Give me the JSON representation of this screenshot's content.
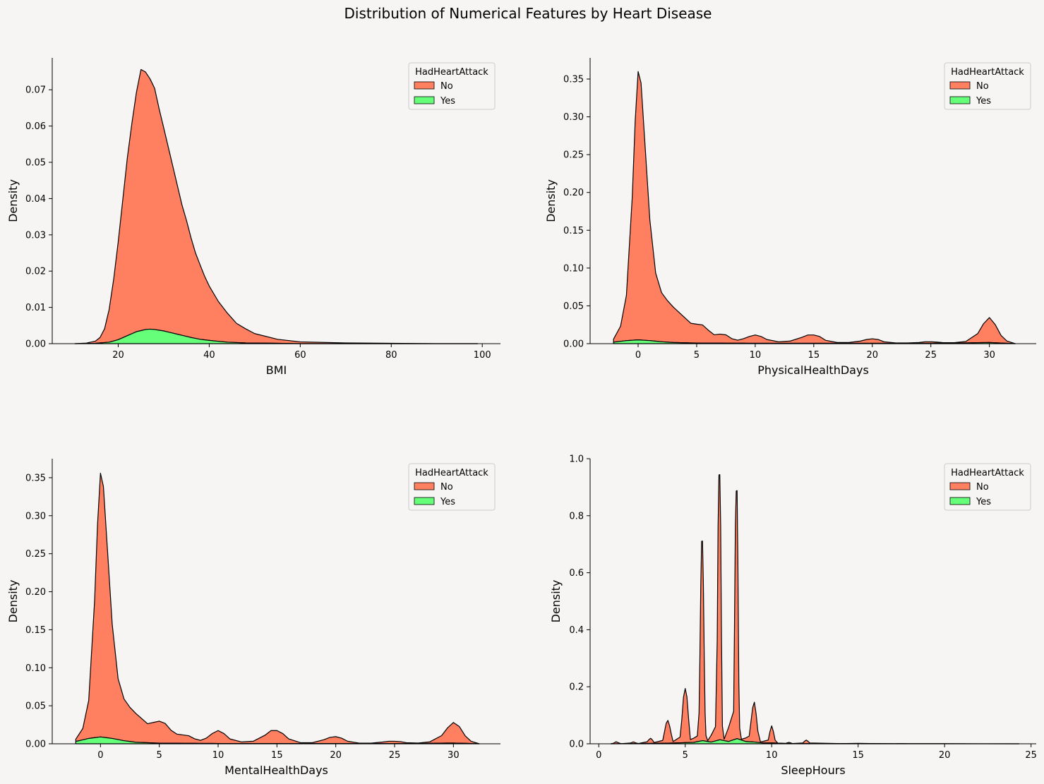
{
  "figure": {
    "title": "Distribution of Numerical Features by Heart Disease",
    "colors": {
      "background": "#f6f5f4",
      "No": "#ff7f61",
      "Yes": "#66ff7a",
      "outline": "#000000"
    }
  },
  "legend": {
    "title": "HadHeartAttack",
    "entries": [
      {
        "label": "No",
        "color": "#ff7f61"
      },
      {
        "label": "Yes",
        "color": "#66ff7a"
      }
    ]
  },
  "chart_data": [
    {
      "type": "area",
      "stacked": true,
      "xlabel": "BMI",
      "ylabel": "Density",
      "xlim": [
        5.5,
        104
      ],
      "ylim": [
        0,
        0.0788
      ],
      "xticks": [
        20,
        40,
        60,
        80,
        100
      ],
      "xtick_labels": [
        "20",
        "40",
        "60",
        "80",
        "100"
      ],
      "yticks": [
        0,
        0.01,
        0.02,
        0.03,
        0.04,
        0.05,
        0.06,
        0.07
      ],
      "ytick_labels": [
        "0.00",
        "0.01",
        "0.02",
        "0.03",
        "0.04",
        "0.05",
        "0.06",
        "0.07"
      ],
      "legend_position": "top-right",
      "series": [
        {
          "name": "No",
          "x": [
            10.5,
            13,
            15,
            16,
            17,
            18,
            19,
            20,
            21,
            22,
            23,
            24,
            25,
            25.5,
            26,
            27,
            28,
            29,
            30,
            31,
            32,
            33,
            34,
            35,
            36,
            37,
            38,
            39,
            40,
            42,
            44,
            46,
            48,
            50,
            55,
            60,
            70,
            80,
            90,
            99
          ],
          "values": [
            0,
            0.0001,
            0.0006,
            0.0015,
            0.0038,
            0.009,
            0.017,
            0.027,
            0.038,
            0.049,
            0.058,
            0.066,
            0.072,
            0.0715,
            0.071,
            0.069,
            0.0665,
            0.061,
            0.056,
            0.051,
            0.046,
            0.041,
            0.036,
            0.032,
            0.0275,
            0.0235,
            0.0205,
            0.0175,
            0.015,
            0.011,
            0.008,
            0.0053,
            0.0039,
            0.0026,
            0.0011,
            0.0005,
            0.0002,
            0.0001,
            0,
            0
          ]
        },
        {
          "name": "Yes",
          "x": [
            10.5,
            15,
            18,
            20,
            22,
            24,
            26,
            27,
            28,
            30,
            32,
            34,
            36,
            38,
            40,
            44,
            48,
            55,
            60,
            99
          ],
          "values": [
            0,
            0.0001,
            0.0004,
            0.0011,
            0.0022,
            0.0033,
            0.0039,
            0.004,
            0.0039,
            0.0035,
            0.0029,
            0.0023,
            0.0017,
            0.0012,
            0.0009,
            0.0004,
            0.0002,
            0.0001,
            0,
            0
          ]
        }
      ]
    },
    {
      "type": "area",
      "stacked": true,
      "xlabel": "PhysicalHealthDays",
      "ylabel": "Density",
      "xlim": [
        -4.1,
        34
      ],
      "ylim": [
        0,
        0.378
      ],
      "xticks": [
        0,
        5,
        10,
        15,
        20,
        25,
        30
      ],
      "xtick_labels": [
        "0",
        "5",
        "10",
        "15",
        "20",
        "25",
        "30"
      ],
      "yticks": [
        0,
        0.05,
        0.1,
        0.15,
        0.2,
        0.25,
        0.3,
        0.35
      ],
      "ytick_labels": [
        "0.00",
        "0.05",
        "0.10",
        "0.15",
        "0.20",
        "0.25",
        "0.30",
        "0.35"
      ],
      "legend_position": "top-right",
      "series": [
        {
          "name": "No",
          "x": [
            -2.1,
            -1.5,
            -1,
            -0.5,
            -0.25,
            0,
            0.25,
            0.5,
            1,
            1.5,
            2,
            2.5,
            3,
            4,
            4.5,
            5,
            5.5,
            6,
            6.5,
            7,
            7.5,
            8,
            8.5,
            9,
            9.5,
            10,
            10.5,
            11,
            12,
            13,
            14,
            14.5,
            15,
            15.5,
            16,
            17,
            18,
            19,
            19.5,
            20,
            20.5,
            21,
            22,
            23,
            24,
            24.5,
            25,
            25.5,
            26,
            27,
            28,
            29,
            29.5,
            30,
            30.5,
            31,
            31.5,
            32.2
          ],
          "values": [
            0.004,
            0.02,
            0.06,
            0.19,
            0.29,
            0.355,
            0.34,
            0.28,
            0.16,
            0.09,
            0.065,
            0.055,
            0.047,
            0.033,
            0.026,
            0.025,
            0.024,
            0.017,
            0.011,
            0.012,
            0.011,
            0.006,
            0.004,
            0.006,
            0.009,
            0.011,
            0.009,
            0.005,
            0.002,
            0.003,
            0.008,
            0.011,
            0.011,
            0.009,
            0.004,
            0.001,
            0.001,
            0.003,
            0.005,
            0.006,
            0.005,
            0.002,
            0.0005,
            0.0005,
            0.001,
            0.002,
            0.002,
            0.0015,
            0.0008,
            0.0005,
            0.002,
            0.012,
            0.025,
            0.033,
            0.024,
            0.01,
            0.003,
            0
          ]
        },
        {
          "name": "Yes",
          "x": [
            -2.1,
            -1,
            0,
            1,
            2,
            3,
            5,
            10,
            15,
            20,
            25,
            28,
            30,
            32.2
          ],
          "values": [
            0.002,
            0.004,
            0.005,
            0.004,
            0.0025,
            0.0015,
            0.0008,
            0.0005,
            0.0005,
            0.0005,
            0.0005,
            0.001,
            0.0015,
            0
          ]
        }
      ]
    },
    {
      "type": "area",
      "stacked": true,
      "xlabel": "MentalHealthDays",
      "ylabel": "Density",
      "xlim": [
        -4.1,
        34
      ],
      "ylim": [
        0,
        0.375
      ],
      "xticks": [
        0,
        5,
        10,
        15,
        20,
        25,
        30
      ],
      "xtick_labels": [
        "0",
        "5",
        "10",
        "15",
        "20",
        "25",
        "30"
      ],
      "yticks": [
        0,
        0.05,
        0.1,
        0.15,
        0.2,
        0.25,
        0.3,
        0.35
      ],
      "ytick_labels": [
        "0.00",
        "0.05",
        "0.10",
        "0.15",
        "0.20",
        "0.25",
        "0.30",
        "0.35"
      ],
      "legend_position": "top-right",
      "series": [
        {
          "name": "No",
          "x": [
            -2.1,
            -1.5,
            -1,
            -0.5,
            -0.25,
            0,
            0.25,
            0.5,
            1,
            1.5,
            2,
            2.5,
            3,
            4,
            4.5,
            5,
            5.5,
            6,
            6.5,
            7,
            7.5,
            8,
            8.5,
            9,
            9.5,
            10,
            10.5,
            11,
            12,
            13,
            14,
            14.5,
            15,
            15.5,
            16,
            17,
            18,
            19,
            19.5,
            20,
            20.5,
            21,
            22,
            23,
            24,
            24.5,
            25,
            25.5,
            26,
            27,
            28,
            29,
            29.5,
            30,
            30.5,
            31,
            31.5,
            32.2
          ],
          "values": [
            0.003,
            0.015,
            0.05,
            0.18,
            0.28,
            0.347,
            0.33,
            0.27,
            0.15,
            0.08,
            0.055,
            0.045,
            0.038,
            0.025,
            0.027,
            0.029,
            0.026,
            0.017,
            0.012,
            0.011,
            0.01,
            0.006,
            0.004,
            0.007,
            0.013,
            0.017,
            0.013,
            0.006,
            0.002,
            0.003,
            0.011,
            0.017,
            0.017,
            0.013,
            0.006,
            0.001,
            0.001,
            0.005,
            0.008,
            0.009,
            0.007,
            0.003,
            0.0005,
            0.0005,
            0.002,
            0.003,
            0.003,
            0.0025,
            0.001,
            0.0005,
            0.002,
            0.01,
            0.02,
            0.027,
            0.022,
            0.01,
            0.003,
            0
          ]
        },
        {
          "name": "Yes",
          "x": [
            -2.1,
            -1,
            0,
            1,
            2,
            3,
            5,
            10,
            15,
            20,
            25,
            28,
            30,
            32.2
          ],
          "values": [
            0.003,
            0.007,
            0.009,
            0.007,
            0.004,
            0.002,
            0.0008,
            0.0004,
            0.0004,
            0.0004,
            0.0003,
            0.0006,
            0.001,
            0
          ]
        }
      ]
    },
    {
      "type": "area",
      "stacked": true,
      "xlabel": "SleepHours",
      "ylabel": "Density",
      "xlim": [
        -0.5,
        25.3
      ],
      "ylim": [
        0,
        1.0
      ],
      "xticks": [
        0,
        5,
        10,
        15,
        20,
        25
      ],
      "xtick_labels": [
        "0",
        "5",
        "10",
        "15",
        "20",
        "25"
      ],
      "yticks": [
        0,
        0.2,
        0.4,
        0.6,
        0.8,
        1.0
      ],
      "ytick_labels": [
        "0.0",
        "0.2",
        "0.4",
        "0.6",
        "0.8",
        "1.0"
      ],
      "legend_position": "top-right",
      "series": [
        {
          "name": "No",
          "x": [
            0.7,
            0.85,
            1,
            1.15,
            1.3,
            1.85,
            2,
            2.15,
            2.3,
            2.8,
            2.9,
            3,
            3.1,
            3.2,
            3.7,
            3.8,
            3.9,
            4,
            4.1,
            4.2,
            4.3,
            4.7,
            4.8,
            4.9,
            5,
            5.1,
            5.2,
            5.3,
            5.7,
            5.8,
            5.85,
            5.9,
            5.95,
            6,
            6.05,
            6.1,
            6.15,
            6.2,
            6.3,
            6.75,
            6.85,
            6.9,
            6.95,
            7,
            7.05,
            7.1,
            7.15,
            7.25,
            7.8,
            7.85,
            7.9,
            7.95,
            8,
            8.05,
            8.1,
            8.15,
            8.25,
            8.7,
            8.8,
            8.9,
            9,
            9.1,
            9.2,
            9.35,
            9.8,
            9.9,
            10,
            10.1,
            10.2,
            10.35,
            10.8,
            11,
            11.2,
            11.8,
            11.9,
            12,
            12.1,
            12.2,
            13,
            14,
            15,
            16,
            18,
            20,
            22,
            24.3
          ],
          "values": [
            0,
            0.002,
            0.007,
            0.003,
            0,
            0.002,
            0.006,
            0.002,
            0,
            0.006,
            0.013,
            0.018,
            0.012,
            0.003,
            0.01,
            0.04,
            0.07,
            0.08,
            0.06,
            0.03,
            0.005,
            0.02,
            0.08,
            0.16,
            0.19,
            0.16,
            0.08,
            0.01,
            0.02,
            0.1,
            0.3,
            0.55,
            0.7,
            0.7,
            0.55,
            0.3,
            0.1,
            0.02,
            0.003,
            0.05,
            0.35,
            0.75,
            0.93,
            0.93,
            0.75,
            0.35,
            0.05,
            0.005,
            0.1,
            0.4,
            0.75,
            0.87,
            0.87,
            0.6,
            0.2,
            0.04,
            0.003,
            0.02,
            0.07,
            0.12,
            0.14,
            0.1,
            0.04,
            0.003,
            0.01,
            0.04,
            0.06,
            0.04,
            0.01,
            0,
            0,
            0.004,
            0,
            0.002,
            0.008,
            0.012,
            0.008,
            0.002,
            0.001,
            0,
            0.001,
            0,
            0,
            0,
            0,
            0
          ]
        },
        {
          "name": "Yes",
          "x": [
            0.7,
            4,
            5,
            5.5,
            6,
            6.5,
            7,
            7.5,
            8,
            8.5,
            9,
            9.5,
            10,
            11,
            24.3
          ],
          "values": [
            0,
            0.002,
            0.004,
            0.005,
            0.011,
            0.006,
            0.014,
            0.008,
            0.018,
            0.008,
            0.006,
            0.003,
            0.003,
            0.001,
            0
          ]
        }
      ]
    }
  ]
}
